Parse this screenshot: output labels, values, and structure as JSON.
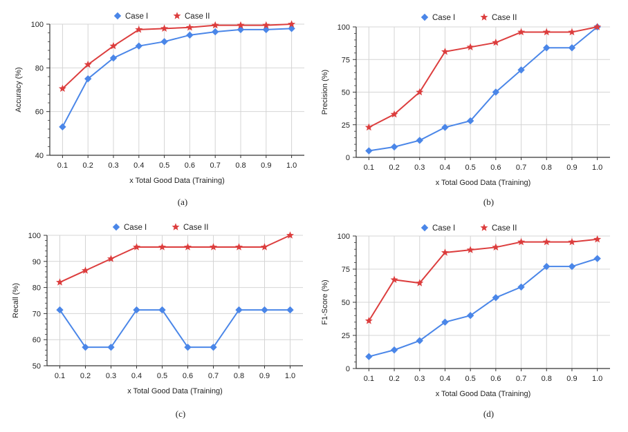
{
  "chart_data": [
    {
      "type": "line",
      "panel_label": "(a)",
      "x": [
        0.1,
        0.2,
        0.3,
        0.4,
        0.5,
        0.6,
        0.7,
        0.8,
        0.9,
        1.0
      ],
      "x_tick_labels": [
        "0.1",
        "0.2",
        "0.3",
        "0.4",
        "0.5",
        "0.6",
        "0.7",
        "0.8",
        "0.9",
        "1.0"
      ],
      "xlabel": "x Total Good Data (Training)",
      "ylabel": "Accuracy (%)",
      "ylim": [
        40,
        100
      ],
      "y_ticks": [
        40,
        60,
        80,
        100
      ],
      "grid": true,
      "legend_position": "top-center",
      "series": [
        {
          "name": "Case I",
          "marker": "diamond",
          "color": "#4a86e8",
          "values": [
            53,
            75,
            84.5,
            90,
            92,
            95,
            96.5,
            97.5,
            97.5,
            98
          ]
        },
        {
          "name": "Case II",
          "marker": "star",
          "color": "#dc3d3d",
          "values": [
            70.5,
            81.5,
            90,
            97.5,
            98,
            98.5,
            99.5,
            99.5,
            99.5,
            100
          ]
        }
      ]
    },
    {
      "type": "line",
      "panel_label": "(b)",
      "x": [
        0.1,
        0.2,
        0.3,
        0.4,
        0.5,
        0.6,
        0.7,
        0.8,
        0.9,
        1.0
      ],
      "x_tick_labels": [
        "0.1",
        "0.2",
        "0.3",
        "0.4",
        "0.5",
        "0.6",
        "0.7",
        "0.8",
        "0.9",
        "1.0"
      ],
      "xlabel": "x Total Good Data (Training)",
      "ylabel": "Precision (%)",
      "ylim": [
        0,
        100
      ],
      "y_ticks": [
        0,
        25,
        50,
        75,
        100
      ],
      "grid": true,
      "legend_position": "top-center",
      "series": [
        {
          "name": "Case I",
          "marker": "diamond",
          "color": "#4a86e8",
          "values": [
            5,
            8,
            13,
            23,
            28,
            50,
            67,
            84,
            84,
            100
          ]
        },
        {
          "name": "Case II",
          "marker": "star",
          "color": "#dc3d3d",
          "values": [
            23,
            33,
            50,
            81,
            84.5,
            88,
            96,
            96,
            96,
            100
          ]
        }
      ]
    },
    {
      "type": "line",
      "panel_label": "(c)",
      "x": [
        0.1,
        0.2,
        0.3,
        0.4,
        0.5,
        0.6,
        0.7,
        0.8,
        0.9,
        1.0
      ],
      "x_tick_labels": [
        "0.1",
        "0.2",
        "0.3",
        "0.4",
        "0.5",
        "0.6",
        "0.7",
        "0.8",
        "0.9",
        "1.0"
      ],
      "xlabel": "x Total Good Data (Training)",
      "ylabel": "Recall (%)",
      "ylim": [
        50,
        100
      ],
      "y_ticks": [
        50,
        60,
        70,
        80,
        90,
        100
      ],
      "grid": true,
      "legend_position": "top-center",
      "series": [
        {
          "name": "Case I",
          "marker": "diamond",
          "color": "#4a86e8",
          "values": [
            71.4,
            57.1,
            57.1,
            71.4,
            71.4,
            57.1,
            57.1,
            71.4,
            71.4,
            71.4
          ]
        },
        {
          "name": "Case II",
          "marker": "star",
          "color": "#dc3d3d",
          "values": [
            82,
            86.5,
            91,
            95.5,
            95.5,
            95.5,
            95.5,
            95.5,
            95.5,
            100
          ]
        }
      ]
    },
    {
      "type": "line",
      "panel_label": "(d)",
      "x": [
        0.1,
        0.2,
        0.3,
        0.4,
        0.5,
        0.6,
        0.7,
        0.8,
        0.9,
        1.0
      ],
      "x_tick_labels": [
        "0.1",
        "0.2",
        "0.3",
        "0.4",
        "0.5",
        "0.6",
        "0.7",
        "0.8",
        "0.9",
        "1.0"
      ],
      "xlabel": "x Total Good Data (Training)",
      "ylabel": "F1-Score (%)",
      "ylim": [
        0,
        100
      ],
      "y_ticks": [
        0,
        25,
        50,
        75,
        100
      ],
      "grid": true,
      "legend_position": "top-center",
      "series": [
        {
          "name": "Case I",
          "marker": "diamond",
          "color": "#4a86e8",
          "values": [
            9,
            14,
            21,
            35,
            40,
            53.5,
            61.5,
            77,
            77,
            83
          ]
        },
        {
          "name": "Case II",
          "marker": "star",
          "color": "#dc3d3d",
          "values": [
            36,
            67,
            64.5,
            87.5,
            89.5,
            91.5,
            95.5,
            95.5,
            95.5,
            97.5
          ]
        }
      ]
    }
  ]
}
